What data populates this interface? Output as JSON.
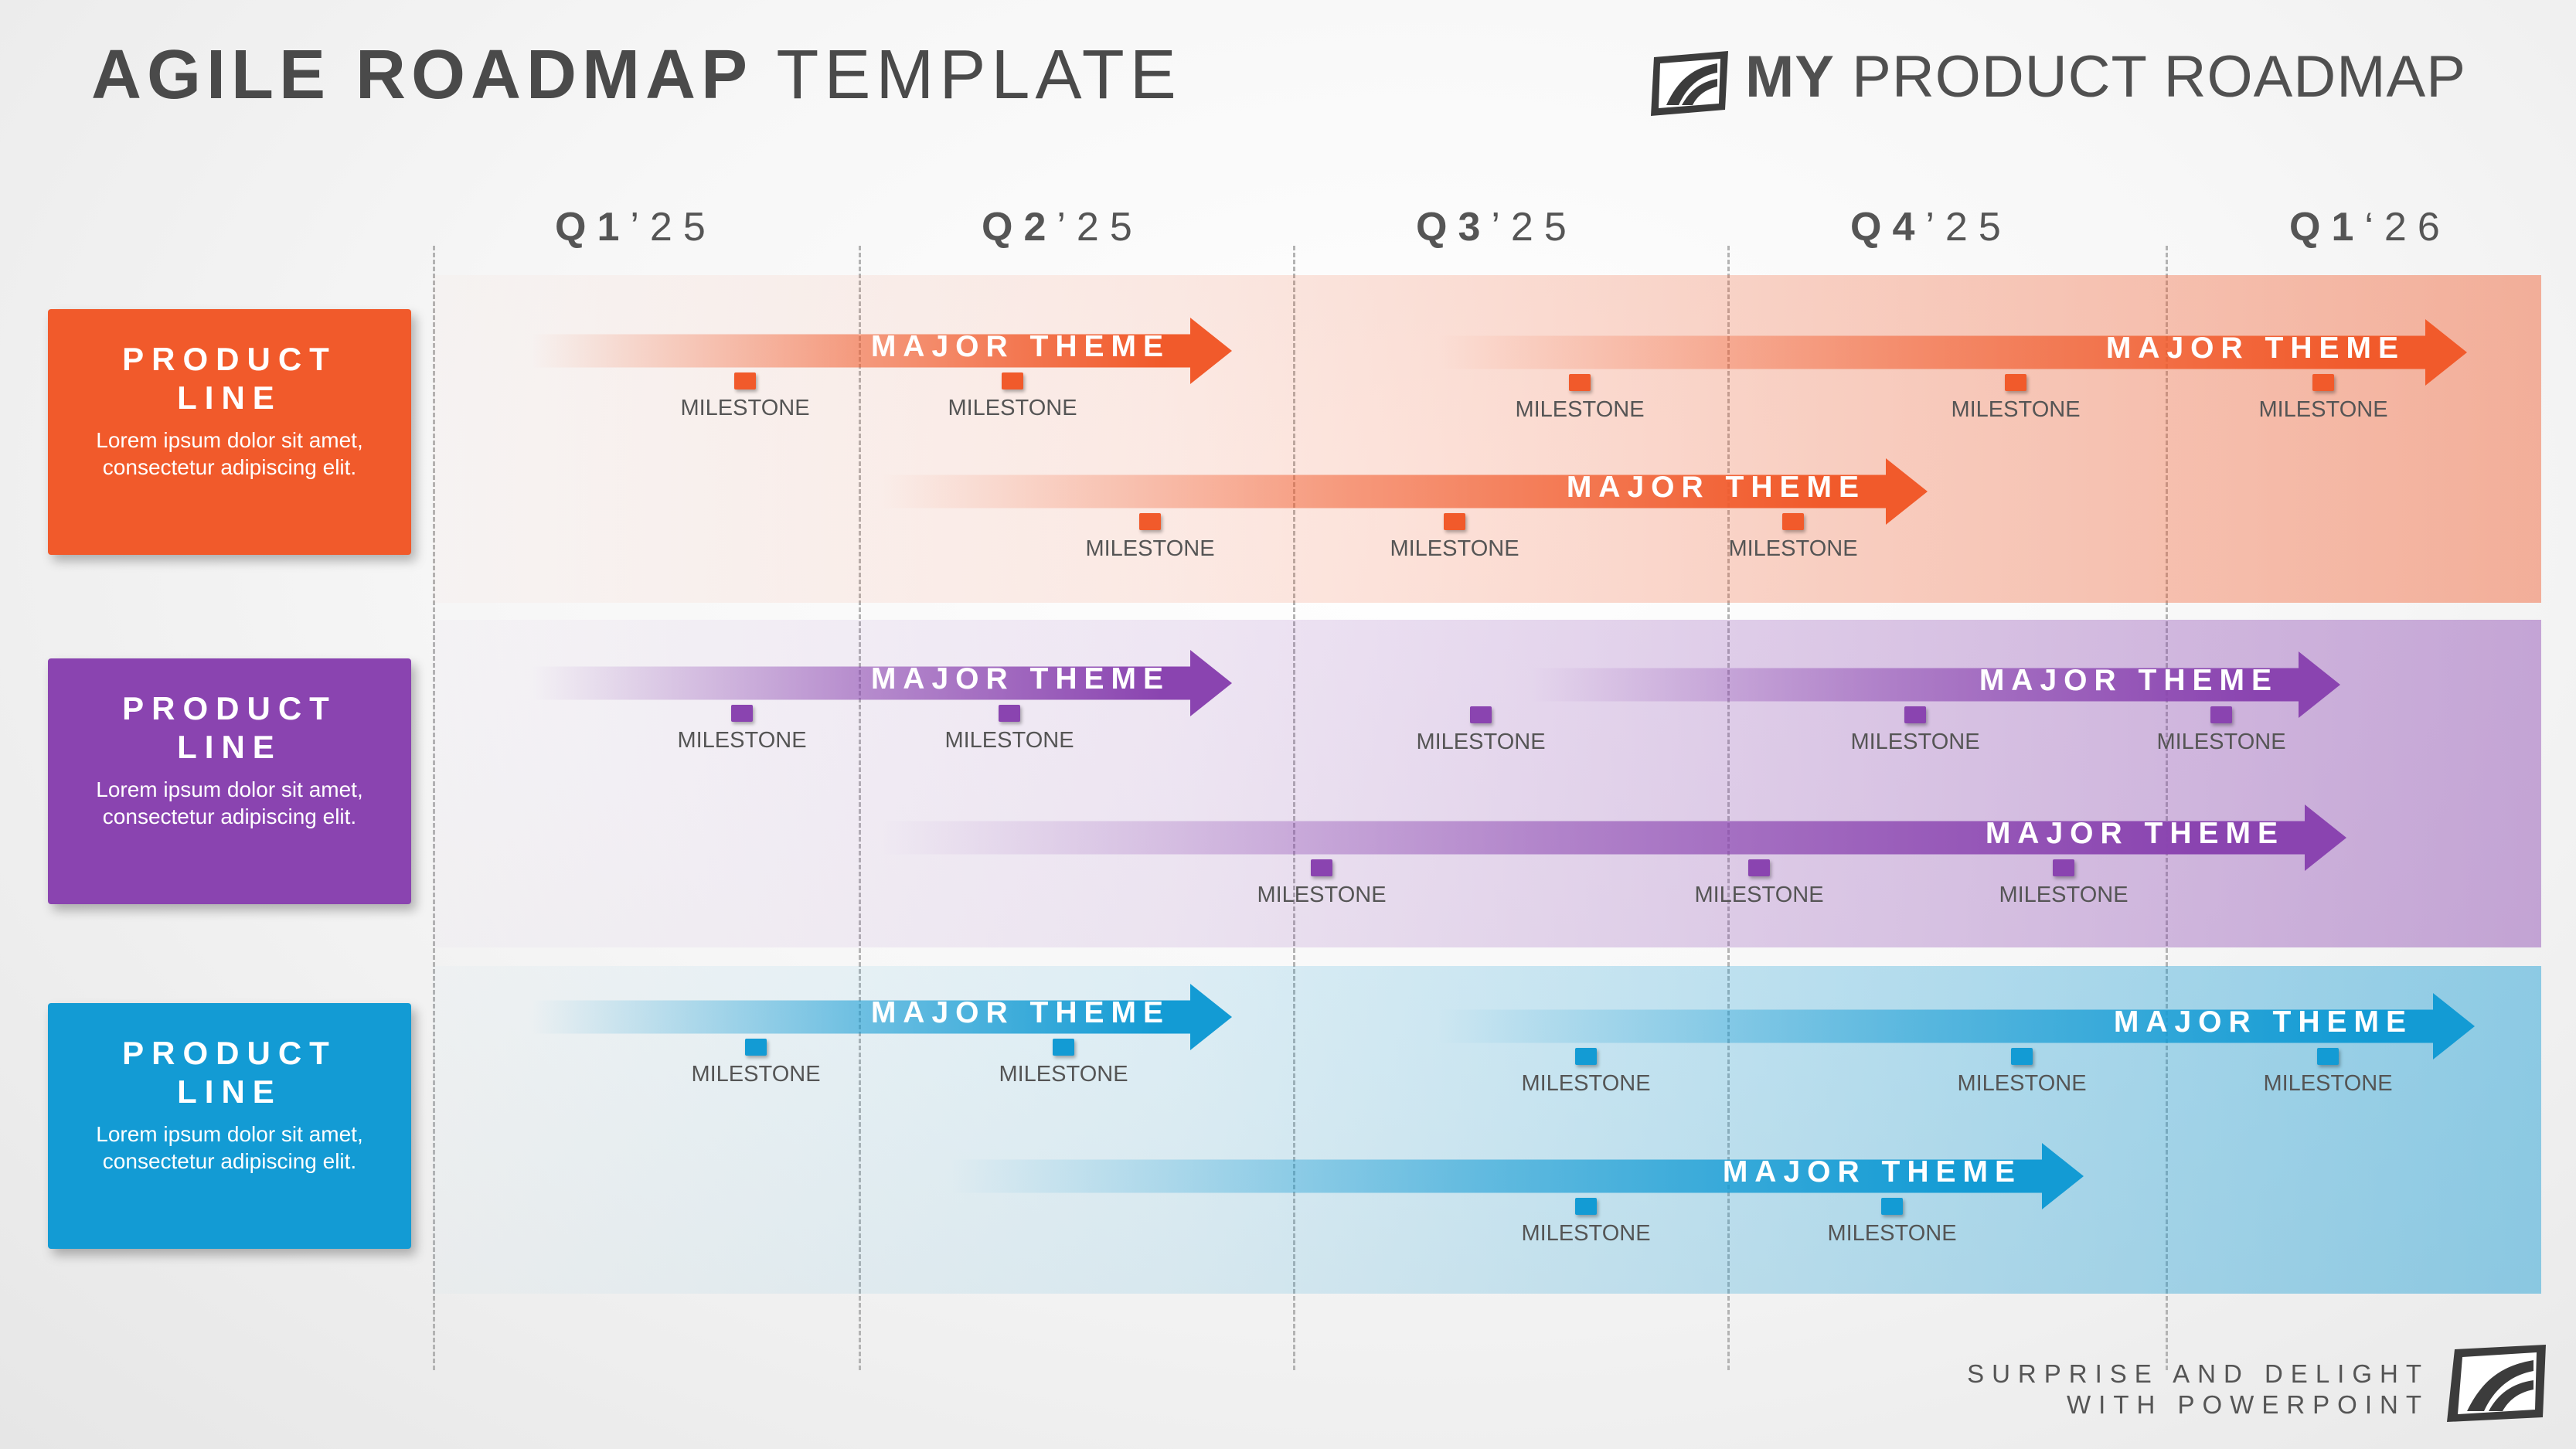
{
  "header": {
    "title_bold": "AGILE ROADMAP",
    "title_light": "TEMPLATE",
    "brand_bold": "MY",
    "brand_light": "PRODUCT ROADMAP",
    "brand_logo_icon": "roadmap-logo-icon"
  },
  "quarters": [
    {
      "q": "Q1",
      "yr": "’25"
    },
    {
      "q": "Q2",
      "yr": "’25"
    },
    {
      "q": "Q3",
      "yr": "’25"
    },
    {
      "q": "Q4",
      "yr": "’25"
    },
    {
      "q": "Q1",
      "yr": "‘26"
    }
  ],
  "product_lines": [
    {
      "title": "PRODUCT LINE",
      "description": "Lorem ipsum dolor sit amet, consectetur adipiscing elit.",
      "color": "#f15a2b",
      "themes": [
        {
          "label": "MAJOR THEME",
          "milestones": [
            "MILESTONE",
            "MILESTONE"
          ]
        },
        {
          "label": "MAJOR THEME",
          "milestones": [
            "MILESTONE",
            "MILESTONE",
            "MILESTONE"
          ]
        },
        {
          "label": "MAJOR THEME",
          "milestones": [
            "MILESTONE",
            "MILESTONE",
            "MILESTONE"
          ]
        }
      ]
    },
    {
      "title": "PRODUCT LINE",
      "description": "Lorem ipsum dolor sit amet, consectetur adipiscing elit.",
      "color": "#8a44b0",
      "themes": [
        {
          "label": "MAJOR THEME",
          "milestones": [
            "MILESTONE",
            "MILESTONE"
          ]
        },
        {
          "label": "MAJOR THEME",
          "milestones": [
            "MILESTONE",
            "MILESTONE",
            "MILESTONE"
          ]
        },
        {
          "label": "MAJOR THEME",
          "milestones": [
            "MILESTONE",
            "MILESTONE",
            "MILESTONE"
          ]
        }
      ]
    },
    {
      "title": "PRODUCT LINE",
      "description": "Lorem ipsum dolor sit amet, consectetur adipiscing elit.",
      "color": "#139bd4",
      "themes": [
        {
          "label": "MAJOR THEME",
          "milestones": [
            "MILESTONE",
            "MILESTONE"
          ]
        },
        {
          "label": "MAJOR THEME",
          "milestones": [
            "MILESTONE",
            "MILESTONE",
            "MILESTONE"
          ]
        },
        {
          "label": "MAJOR THEME",
          "milestones": [
            "MILESTONE",
            "MILESTONE"
          ]
        }
      ]
    }
  ],
  "footer": {
    "line1": "SURPRISE AND DELIGHT",
    "line2": "WITH POWERPOINT",
    "logo_icon": "roadmap-logo-icon"
  }
}
